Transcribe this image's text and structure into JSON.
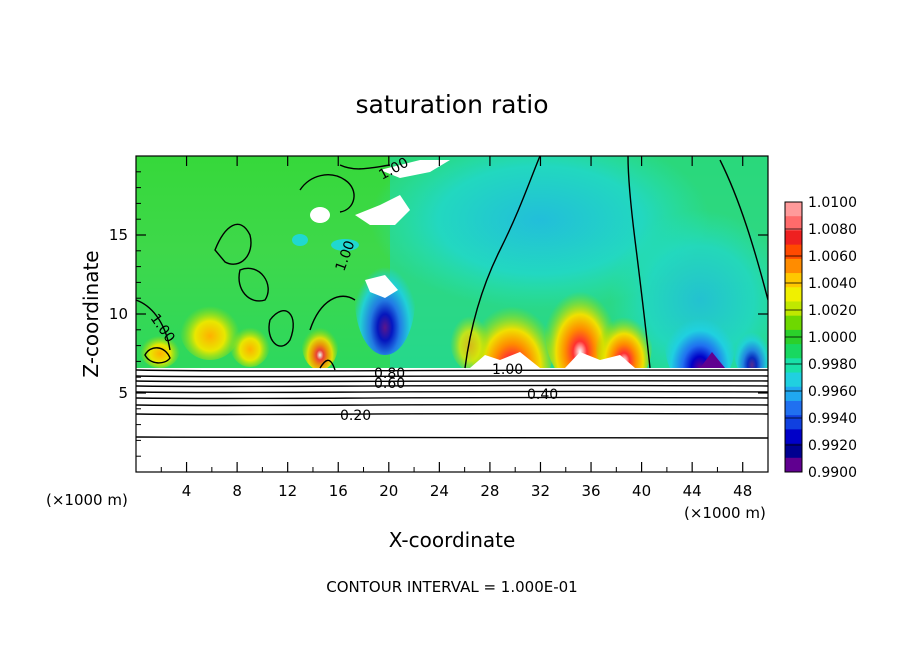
{
  "chart_data": {
    "type": "heatmap",
    "title": "saturation ratio",
    "xlabel": "X-coordinate",
    "ylabel": "Z-coordinate",
    "x_unit_label": "(×1000 m)",
    "y_unit_label": "(×1000 m)",
    "footer": "CONTOUR INTERVAL = 1.000E-01",
    "xlim": [
      0,
      50
    ],
    "ylim": [
      0,
      20
    ],
    "x_ticks": [
      4,
      8,
      12,
      16,
      20,
      24,
      28,
      32,
      36,
      40,
      44,
      48
    ],
    "y_ticks": [
      5,
      10,
      15
    ],
    "colorbar": {
      "min": 0.99,
      "max": 1.01,
      "labels": [
        "1.0100",
        "1.0080",
        "1.0060",
        "1.0040",
        "1.0020",
        "1.0000",
        "0.9980",
        "0.9960",
        "0.9940",
        "0.9920",
        "0.9900"
      ],
      "colors": [
        "#ff9a9a",
        "#ff6b6b",
        "#ee2020",
        "#ff4a00",
        "#ff8c00",
        "#ffc800",
        "#f0f000",
        "#c0e800",
        "#6ed800",
        "#2bd02b",
        "#18d860",
        "#18e0a8",
        "#20d0e0",
        "#20a8f0",
        "#2070f0",
        "#1040e0",
        "#0000c8",
        "#000090",
        "#600090"
      ]
    },
    "contour_labels": [
      "1.00",
      "1.00",
      "0.80",
      "0.60",
      "1.00",
      "0.40",
      "0.20",
      "1.00"
    ],
    "grid": false,
    "legend": "right (colorbar)"
  }
}
